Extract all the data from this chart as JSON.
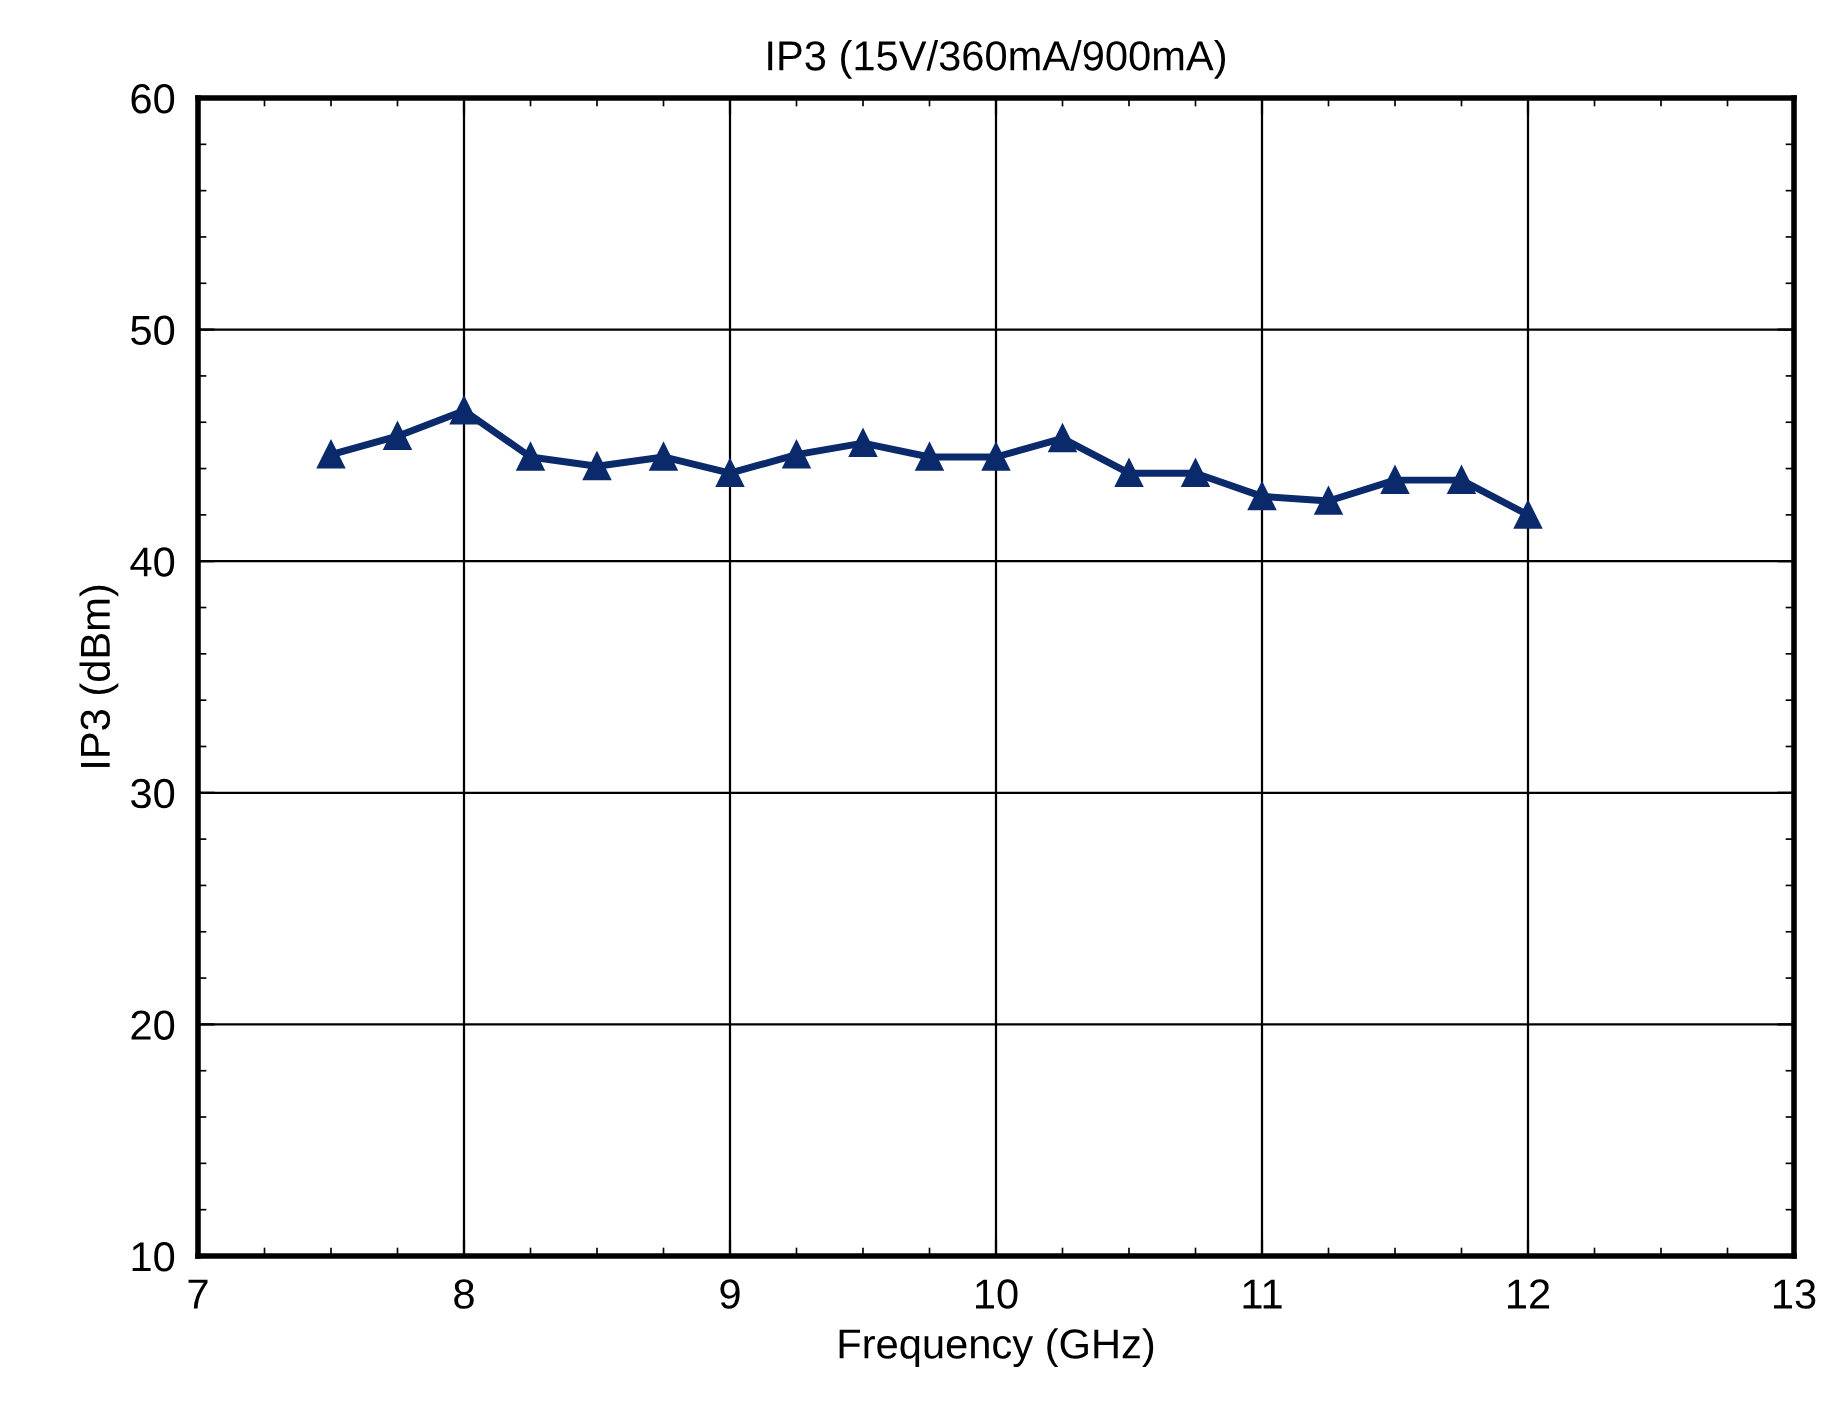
{
  "chart_data": {
    "type": "line",
    "title": "IP3 (15V/360mA/900mA)",
    "xlabel": "Frequency (GHz)",
    "ylabel": "IP3 (dBm)",
    "x": [
      7.5,
      7.75,
      8,
      8.25,
      8.5,
      8.75,
      9,
      9.25,
      9.5,
      9.75,
      10,
      10.25,
      10.5,
      10.75,
      11,
      11.25,
      11.5,
      11.75,
      12
    ],
    "series": [
      {
        "color": "#0b2a6b",
        "values": [
          44.6,
          45.4,
          46.5,
          44.5,
          44.1,
          44.5,
          43.8,
          44.6,
          45.1,
          44.5,
          44.5,
          45.3,
          43.8,
          43.8,
          42.8,
          42.6,
          43.5,
          43.5,
          42.0
        ]
      }
    ],
    "xlim": [
      7,
      13
    ],
    "xticks": [
      7,
      8,
      9,
      10,
      11,
      12,
      13
    ],
    "ylim": [
      10,
      60
    ],
    "yticks": [
      10,
      20,
      30,
      40,
      50,
      60
    ],
    "grid": true,
    "marker": "triangle",
    "line_style": "solid"
  }
}
